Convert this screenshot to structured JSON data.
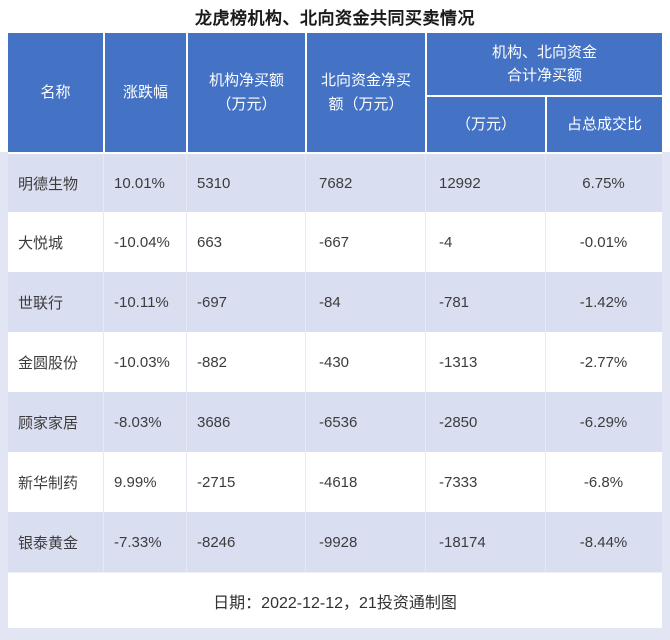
{
  "page": {
    "title": "龙虎榜机构、北向资金共同买卖情况",
    "source_note": "日期：2022-12-12，21投资通制图"
  },
  "header": {
    "name": "名称",
    "change": "涨跌幅",
    "inst_l1": "机构净买额",
    "inst_l2": "（万元）",
    "north_l1": "北向资金净买",
    "north_l2": "额（万元）",
    "combo_l1": "机构、北向资金",
    "combo_l2": "合计净买额",
    "combo_wan": "（万元）",
    "combo_pct": "占总成交比"
  },
  "colors": {
    "header_bg": "#4472C4",
    "stripe_row_bg": "#D9DEF1",
    "frame_bg": "#E2E6F4",
    "header_text": "#FFFFFF",
    "body_text": "#3C3C3C"
  },
  "chart_data": {
    "type": "table",
    "title": "龙虎榜机构、北向资金共同买卖情况",
    "columns": [
      "名称",
      "涨跌幅",
      "机构净买额（万元）",
      "北向资金净买额（万元）",
      "机构、北向资金合计净买额（万元）",
      "机构、北向资金合计净买额占总成交比"
    ],
    "rows": [
      [
        "明德生物",
        "10.01%",
        "5310",
        "7682",
        "12992",
        "6.75%"
      ],
      [
        "大悦城",
        "-10.04%",
        "663",
        "-667",
        "-4",
        "-0.01%"
      ],
      [
        "世联行",
        "-10.11%",
        "-697",
        "-84",
        "-781",
        "-1.42%"
      ],
      [
        "金圆股份",
        "-10.03%",
        "-882",
        "-430",
        "-1313",
        "-2.77%"
      ],
      [
        "顾家家居",
        "-8.03%",
        "3686",
        "-6536",
        "-2850",
        "-6.29%"
      ],
      [
        "新华制药",
        "9.99%",
        "-2715",
        "-4618",
        "-7333",
        "-6.8%"
      ],
      [
        "银泰黄金",
        "-7.33%",
        "-8246",
        "-9928",
        "-18174",
        "-8.44%"
      ]
    ],
    "note": "日期：2022-12-12，21投资通制图"
  }
}
